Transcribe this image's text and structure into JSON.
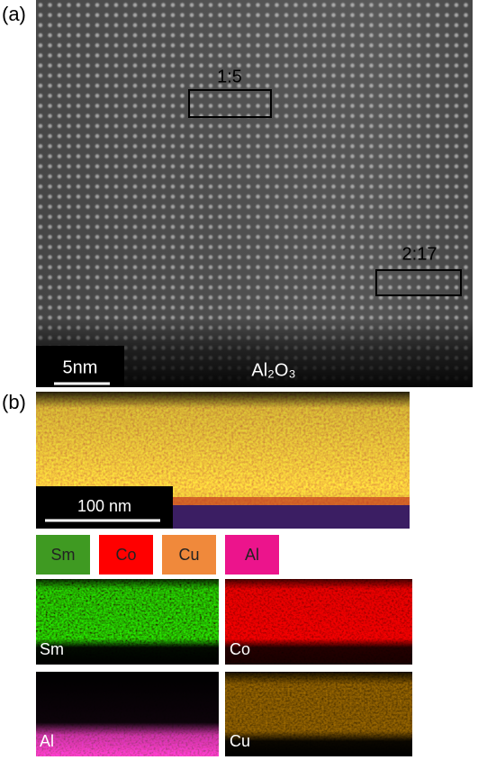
{
  "panel_a": {
    "label": "(a)",
    "boxes": [
      {
        "label": "1:5"
      },
      {
        "label": "2:17"
      }
    ],
    "scale_bar": "5nm",
    "substrate": "Al₂O₃"
  },
  "panel_b": {
    "label": "(b)",
    "scale_bar": "100 nm",
    "legend": [
      "Sm",
      "Co",
      "Cu",
      "Al"
    ],
    "maps": [
      "Sm",
      "Co",
      "Al",
      "Cu"
    ]
  }
}
